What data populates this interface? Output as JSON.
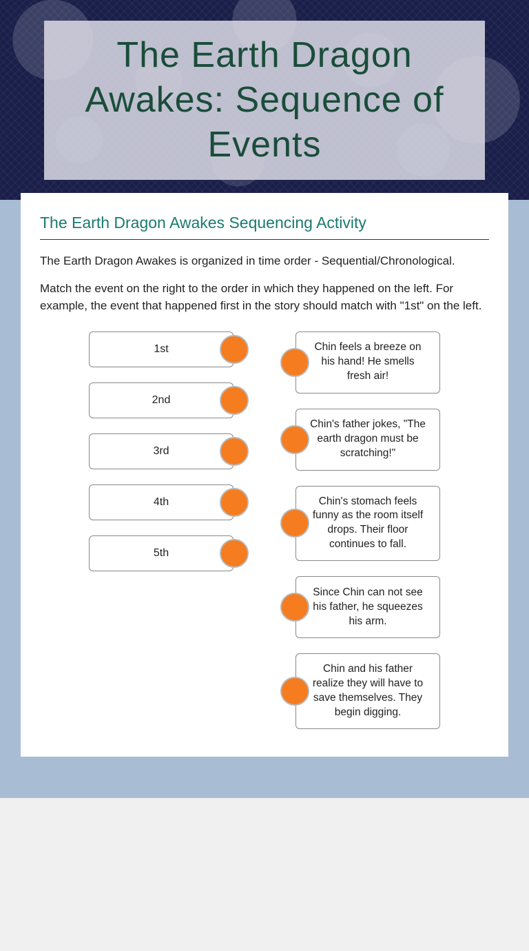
{
  "header": {
    "title": "The Earth Dragon Awakes: Sequence of Events"
  },
  "card": {
    "subtitle": "The Earth Dragon Awakes Sequencing Activity",
    "description1": "The Earth Dragon Awakes is organized in time order - Sequential/Chronological.",
    "description2": "Match the event on the right to the order in which they happened on the left. For example, the event that happened first in the story should match with \"1st\" on the left."
  },
  "matching": {
    "left": [
      {
        "label": "1st"
      },
      {
        "label": "2nd"
      },
      {
        "label": "3rd"
      },
      {
        "label": "4th"
      },
      {
        "label": "5th"
      }
    ],
    "right": [
      {
        "text": "Chin feels a breeze on his hand! He smells fresh air!"
      },
      {
        "text": "Chin's father jokes, \"The earth dragon must be scratching!\""
      },
      {
        "text": "Chin's stomach feels funny as the room itself drops. Their floor continues to fall."
      },
      {
        "text": "Since Chin can not see his father, he squeezes his arm."
      },
      {
        "text": "Chin and his father realize they will have to save themselves. They begin digging."
      }
    ],
    "dot_color": "#f57c1f",
    "dot_border": "#b8b8b8"
  },
  "colors": {
    "header_bg": "#1a1f4a",
    "title_overlay": "rgba(220,220,230,0.85)",
    "title_text": "#1a4d3a",
    "blue_section": "#a8bcd4",
    "subtitle": "#1a7a6e",
    "card_bg": "#ffffff"
  }
}
